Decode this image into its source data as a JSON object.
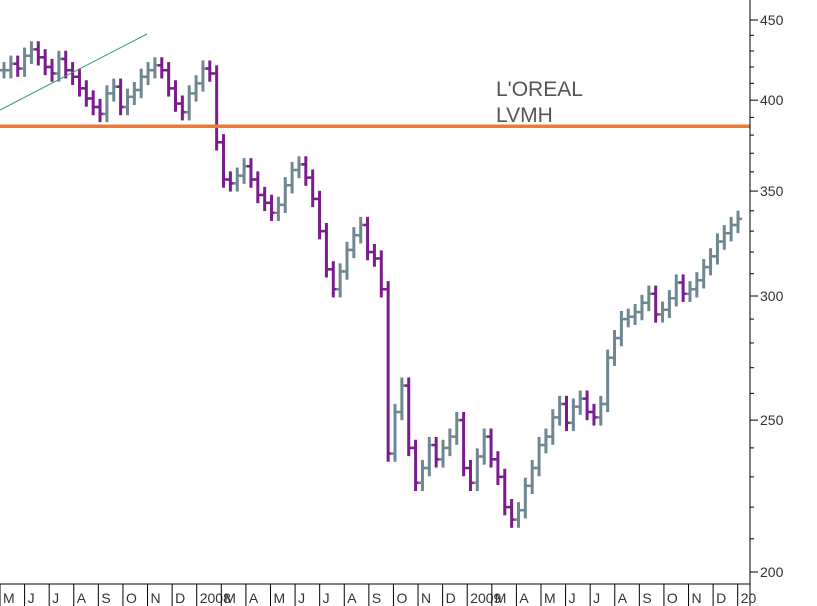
{
  "chart_data": {
    "type": "line",
    "title": "",
    "xlabel": "",
    "ylabel": "",
    "yscale": "log",
    "ylim": [
      195,
      460
    ],
    "legend": {
      "placement": "top-right",
      "entries": [
        "L'OREAL",
        "LVMH"
      ]
    },
    "y_ticks": [
      {
        "value": 450,
        "label": "450"
      },
      {
        "value": 400,
        "label": "400"
      },
      {
        "value": 350,
        "label": "350"
      },
      {
        "value": 300,
        "label": "300"
      },
      {
        "value": 250,
        "label": "250"
      },
      {
        "value": 200,
        "label": "200"
      }
    ],
    "x_ticks": [
      "M",
      "J",
      "J",
      "A",
      "S",
      "O",
      "N",
      "D",
      "2008",
      "M",
      "A",
      "M",
      "J",
      "J",
      "A",
      "S",
      "O",
      "N",
      "D",
      "2009",
      "M",
      "A",
      "M",
      "J",
      "J",
      "A",
      "S",
      "O",
      "N",
      "D",
      "20"
    ],
    "horizontal_line": {
      "value": 385
    },
    "colors": {
      "up": "#6e8790",
      "down": "#7a1c8c",
      "level_line": "#f07830",
      "trend_line": "#3aa070"
    },
    "series": [
      {
        "values": [
          418,
          422,
          419,
          427,
          431,
          426,
          420,
          416,
          425,
          418,
          414,
          407,
          401,
          396,
          392,
          404,
          408,
          396,
          402,
          406,
          414,
          418,
          421,
          418,
          407,
          398,
          393,
          404,
          410,
          419,
          416,
          376,
          356,
          354,
          358,
          363,
          356,
          348,
          344,
          339,
          343,
          353,
          361,
          364,
          357,
          346,
          330,
          312,
          303,
          311,
          321,
          328,
          333,
          320,
          317,
          303,
          238,
          253,
          263,
          240,
          228,
          233,
          241,
          236,
          240,
          244,
          250,
          233,
          228,
          237,
          244,
          236,
          230,
          220,
          216,
          219,
          227,
          233,
          241,
          244,
          251,
          256,
          249,
          255,
          258,
          253,
          251,
          256,
          274,
          282,
          290,
          291,
          293,
          297,
          301,
          292,
          294,
          299,
          306,
          301,
          303,
          307,
          313,
          318,
          325,
          329,
          333,
          336
        ]
      }
    ]
  }
}
